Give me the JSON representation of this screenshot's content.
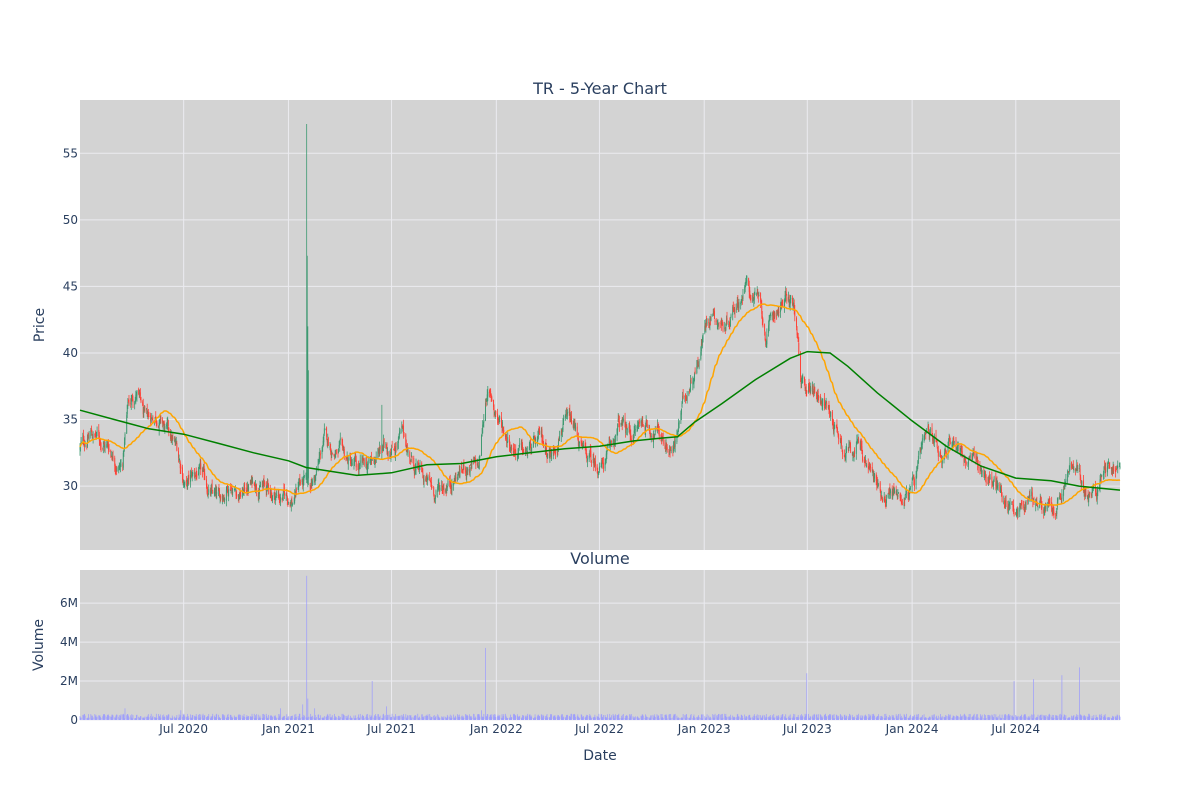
{
  "chart_data": [
    {
      "type": "candlestick",
      "title": "TR - 5-Year Chart",
      "ylabel": "Price",
      "ylim": [
        25.2,
        59.0
      ],
      "yticks": [
        30,
        35,
        40,
        45,
        50,
        55
      ],
      "x_range": [
        "2020-01-01",
        "2024-12-31"
      ],
      "grid": true,
      "colors": {
        "up": "#3d9970",
        "down": "#ff4136",
        "ma_short": "#ffa500",
        "ma_long": "#008000",
        "plot_bg": "#d3d3d3",
        "grid": "#ebebf0"
      },
      "close_keypoints": [
        [
          "2020-01-01",
          32.8
        ],
        [
          "2020-01-20",
          34.0
        ],
        [
          "2020-02-20",
          33.0
        ],
        [
          "2020-03-15",
          31.5
        ],
        [
          "2020-03-25",
          36.0
        ],
        [
          "2020-04-10",
          37.2
        ],
        [
          "2020-04-25",
          34.5
        ],
        [
          "2020-05-15",
          35.5
        ],
        [
          "2020-06-01",
          34.0
        ],
        [
          "2020-06-20",
          32.5
        ],
        [
          "2020-07-05",
          30.0
        ],
        [
          "2020-07-25",
          31.0
        ],
        [
          "2020-08-15",
          29.5
        ],
        [
          "2020-09-01",
          28.7
        ],
        [
          "2020-09-20",
          30.5
        ],
        [
          "2020-10-10",
          29.5
        ],
        [
          "2020-11-05",
          30.5
        ],
        [
          "2020-12-01",
          29.5
        ],
        [
          "2020-12-25",
          29.2
        ],
        [
          "2021-01-10",
          29.0
        ],
        [
          "2021-01-20",
          30.5
        ],
        [
          "2021-02-05",
          29.8
        ],
        [
          "2021-02-20",
          31.0
        ],
        [
          "2021-03-05",
          33.5
        ],
        [
          "2021-03-25",
          32.5
        ],
        [
          "2021-04-15",
          31.8
        ],
        [
          "2021-05-05",
          31.0
        ],
        [
          "2021-05-25",
          31.5
        ],
        [
          "2021-06-10",
          32.5
        ],
        [
          "2021-06-25",
          33.0
        ],
        [
          "2021-07-20",
          33.8
        ],
        [
          "2021-08-10",
          31.5
        ],
        [
          "2021-08-30",
          30.2
        ],
        [
          "2021-09-15",
          29.5
        ],
        [
          "2021-10-10",
          30.5
        ],
        [
          "2021-11-10",
          31.5
        ],
        [
          "2021-12-01",
          31.2
        ],
        [
          "2021-12-15",
          37.2
        ],
        [
          "2022-01-05",
          35.0
        ],
        [
          "2022-01-25",
          33.5
        ],
        [
          "2022-02-20",
          32.3
        ],
        [
          "2022-03-20",
          33.2
        ],
        [
          "2022-04-10",
          32.5
        ],
        [
          "2022-04-25",
          35.0
        ],
        [
          "2022-05-20",
          34.0
        ],
        [
          "2022-06-05",
          32.0
        ],
        [
          "2022-06-25",
          31.5
        ],
        [
          "2022-07-15",
          32.0
        ],
        [
          "2022-08-05",
          34.5
        ],
        [
          "2022-08-25",
          33.8
        ],
        [
          "2022-09-15",
          34.8
        ],
        [
          "2022-10-10",
          34.2
        ],
        [
          "2022-10-30",
          33.2
        ],
        [
          "2022-11-10",
          33.0
        ],
        [
          "2022-11-25",
          36.0
        ],
        [
          "2022-12-10",
          38.5
        ],
        [
          "2022-12-20",
          39.5
        ],
        [
          "2023-01-05",
          42.5
        ],
        [
          "2023-01-15",
          43.5
        ],
        [
          "2023-02-05",
          42.0
        ],
        [
          "2023-02-25",
          44.0
        ],
        [
          "2023-03-15",
          45.0
        ],
        [
          "2023-04-05",
          44.0
        ],
        [
          "2023-04-20",
          41.0
        ],
        [
          "2023-05-10",
          43.5
        ],
        [
          "2023-06-01",
          44.0
        ],
        [
          "2023-06-10",
          43.0
        ],
        [
          "2023-06-20",
          37.0
        ],
        [
          "2023-07-10",
          37.5
        ],
        [
          "2023-07-25",
          37.0
        ],
        [
          "2023-08-15",
          35.0
        ],
        [
          "2023-09-05",
          33.0
        ],
        [
          "2023-09-25",
          33.5
        ],
        [
          "2023-10-15",
          31.5
        ],
        [
          "2023-11-05",
          29.5
        ],
        [
          "2023-11-25",
          29.8
        ],
        [
          "2023-12-10",
          29.3
        ],
        [
          "2024-01-05",
          30.0
        ],
        [
          "2024-01-25",
          33.0
        ],
        [
          "2024-02-10",
          33.5
        ],
        [
          "2024-02-25",
          32.5
        ],
        [
          "2024-03-15",
          33.8
        ],
        [
          "2024-04-05",
          32.0
        ],
        [
          "2024-04-25",
          31.5
        ],
        [
          "2024-05-20",
          30.5
        ],
        [
          "2024-06-10",
          29.0
        ],
        [
          "2024-06-30",
          28.5
        ],
        [
          "2024-07-15",
          28.5
        ],
        [
          "2024-07-25",
          29.5
        ],
        [
          "2024-08-10",
          29.0
        ],
        [
          "2024-08-25",
          28.0
        ],
        [
          "2024-09-05",
          27.8
        ],
        [
          "2024-09-20",
          29.0
        ],
        [
          "2024-10-05",
          31.5
        ],
        [
          "2024-10-20",
          30.5
        ],
        [
          "2024-11-05",
          29.0
        ],
        [
          "2024-11-20",
          29.5
        ],
        [
          "2024-12-05",
          32.0
        ],
        [
          "2024-12-20",
          31.5
        ],
        [
          "2024-12-31",
          31.2
        ]
      ],
      "spikes": [
        {
          "date": "2021-02-02",
          "high": 57.2,
          "low": 31.0
        },
        {
          "date": "2021-02-03",
          "high": 47.3,
          "low": 33.0
        },
        {
          "date": "2021-02-04",
          "high": 42.0,
          "low": 33.5
        },
        {
          "date": "2021-02-05",
          "high": 38.7,
          "low": 32.0
        },
        {
          "date": "2021-06-14",
          "high": 36.1,
          "low": 32.0
        }
      ],
      "ma_long": [
        [
          "2020-01-01",
          35.7
        ],
        [
          "2020-03-01",
          35.0
        ],
        [
          "2020-05-01",
          34.3
        ],
        [
          "2020-07-01",
          33.9
        ],
        [
          "2020-09-01",
          33.2
        ],
        [
          "2020-11-01",
          32.5
        ],
        [
          "2021-01-01",
          31.9
        ],
        [
          "2021-02-01",
          31.4
        ],
        [
          "2021-05-01",
          30.8
        ],
        [
          "2021-07-01",
          31.0
        ],
        [
          "2021-09-01",
          31.6
        ],
        [
          "2021-11-01",
          31.7
        ],
        [
          "2022-01-01",
          32.2
        ],
        [
          "2022-03-01",
          32.5
        ],
        [
          "2022-05-01",
          32.8
        ],
        [
          "2022-07-01",
          33.0
        ],
        [
          "2022-09-01",
          33.4
        ],
        [
          "2022-10-15",
          33.6
        ],
        [
          "2022-11-15",
          33.7
        ],
        [
          "2022-12-15",
          34.8
        ],
        [
          "2023-02-01",
          36.2
        ],
        [
          "2023-04-01",
          38.0
        ],
        [
          "2023-06-01",
          39.6
        ],
        [
          "2023-07-01",
          40.1
        ],
        [
          "2023-08-10",
          40.0
        ],
        [
          "2023-09-10",
          39.0
        ],
        [
          "2023-11-01",
          37.0
        ],
        [
          "2024-01-01",
          34.9
        ],
        [
          "2024-03-01",
          33.0
        ],
        [
          "2024-05-01",
          31.5
        ],
        [
          "2024-07-01",
          30.6
        ],
        [
          "2024-09-01",
          30.4
        ],
        [
          "2024-10-20",
          30.0
        ],
        [
          "2024-12-31",
          29.7
        ]
      ],
      "ma_short_window": 50,
      "ma_long_window": 200
    },
    {
      "type": "bar",
      "title": "Volume",
      "xlabel": "Date",
      "ylabel": "Volume",
      "ylim": [
        0,
        7700000
      ],
      "yticks": [
        0,
        2000000,
        4000000,
        6000000
      ],
      "ytick_labels": [
        "0",
        "2M",
        "4M",
        "6M"
      ],
      "xticks": [
        "2020-07-01",
        "2021-01-01",
        "2021-07-01",
        "2022-01-01",
        "2022-07-01",
        "2023-01-01",
        "2023-07-01",
        "2024-01-01",
        "2024-07-01"
      ],
      "xtick_labels": [
        "Jul 2020",
        "Jan 2021",
        "Jul 2021",
        "Jan 2022",
        "Jul 2022",
        "Jan 2023",
        "Jul 2023",
        "Jan 2024",
        "Jul 2024"
      ],
      "bar_color": "#9999ff",
      "base_volume": 200000,
      "spikes": [
        {
          "date": "2021-02-02",
          "value": 7400000
        },
        {
          "date": "2021-02-04",
          "value": 1100000
        },
        {
          "date": "2021-01-26",
          "value": 800000
        },
        {
          "date": "2021-02-16",
          "value": 600000
        },
        {
          "date": "2021-05-28",
          "value": 2000000
        },
        {
          "date": "2021-06-22",
          "value": 700000
        },
        {
          "date": "2021-12-13",
          "value": 3700000
        },
        {
          "date": "2021-12-06",
          "value": 500000
        },
        {
          "date": "2023-06-30",
          "value": 2400000
        },
        {
          "date": "2024-06-28",
          "value": 2000000
        },
        {
          "date": "2024-08-01",
          "value": 2100000
        },
        {
          "date": "2024-09-20",
          "value": 2300000
        },
        {
          "date": "2024-10-20",
          "value": 2700000
        },
        {
          "date": "2020-03-20",
          "value": 600000
        },
        {
          "date": "2020-06-26",
          "value": 500000
        },
        {
          "date": "2020-12-18",
          "value": 600000
        }
      ]
    }
  ]
}
